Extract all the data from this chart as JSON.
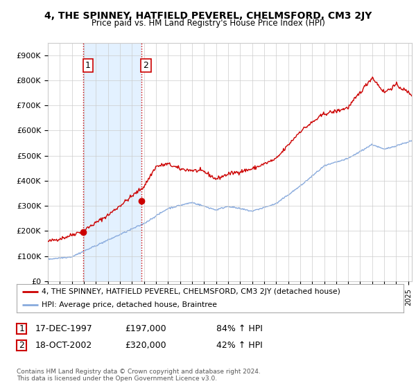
{
  "title": "4, THE SPINNEY, HATFIELD PEVEREL, CHELMSFORD, CM3 2JY",
  "subtitle": "Price paid vs. HM Land Registry's House Price Index (HPI)",
  "ylabel_ticks": [
    "£0",
    "£100K",
    "£200K",
    "£300K",
    "£400K",
    "£500K",
    "£600K",
    "£700K",
    "£800K",
    "£900K"
  ],
  "ytick_values": [
    0,
    100000,
    200000,
    300000,
    400000,
    500000,
    600000,
    700000,
    800000,
    900000
  ],
  "ylim": [
    0,
    950000
  ],
  "xlim_start": 1995.0,
  "xlim_end": 2025.3,
  "sale1_x": 1997.96,
  "sale1_y": 197000,
  "sale2_x": 2002.79,
  "sale2_y": 320000,
  "vline1_x": 1997.96,
  "vline2_x": 2002.79,
  "shade_color": "#ddeeff",
  "legend_red_label": "4, THE SPINNEY, HATFIELD PEVEREL, CHELMSFORD, CM3 2JY (detached house)",
  "legend_blue_label": "HPI: Average price, detached house, Braintree",
  "table_rows": [
    {
      "num": "1",
      "date": "17-DEC-1997",
      "price": "£197,000",
      "hpi": "84% ↑ HPI"
    },
    {
      "num": "2",
      "date": "18-OCT-2002",
      "price": "£320,000",
      "hpi": "42% ↑ HPI"
    }
  ],
  "footnote1": "Contains HM Land Registry data © Crown copyright and database right 2024.",
  "footnote2": "This data is licensed under the Open Government Licence v3.0.",
  "red_color": "#cc0000",
  "blue_color": "#88aadd",
  "vline_color": "#cc0000",
  "grid_color": "#cccccc",
  "background_color": "#ffffff"
}
